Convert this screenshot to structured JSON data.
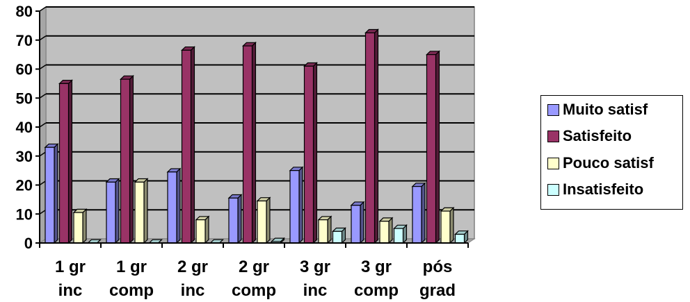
{
  "chart_data": {
    "type": "bar",
    "categories": [
      [
        "1 gr",
        "inc"
      ],
      [
        "1 gr",
        "comp"
      ],
      [
        "2 gr",
        "inc"
      ],
      [
        "2 gr",
        "comp"
      ],
      [
        "3 gr",
        "inc"
      ],
      [
        "3 gr",
        "comp"
      ],
      [
        "pós",
        "grad"
      ]
    ],
    "series": [
      {
        "name": "Muito satisf",
        "color": "#9999ff",
        "values": [
          33,
          21,
          24.5,
          15.5,
          25,
          13,
          19.5
        ]
      },
      {
        "name": "Satisfeito",
        "color": "#993366",
        "values": [
          55,
          56.5,
          66.5,
          68,
          61,
          72.5,
          65
        ]
      },
      {
        "name": "Pouco satisf",
        "color": "#ffffcc",
        "values": [
          10.5,
          21,
          8,
          14.5,
          8,
          7.5,
          11
        ]
      },
      {
        "name": "Insatisfeito",
        "color": "#ccffff",
        "values": [
          0,
          0,
          0,
          0.5,
          4,
          5,
          3
        ]
      }
    ],
    "yticks": [
      "0",
      "10",
      "20",
      "30",
      "40",
      "50",
      "60",
      "70",
      "80"
    ],
    "ylim": [
      0,
      80
    ],
    "grid": true,
    "plot_background": "#c0c0c0",
    "legend_position": "right",
    "title": "",
    "xlabel": "",
    "ylabel": ""
  }
}
